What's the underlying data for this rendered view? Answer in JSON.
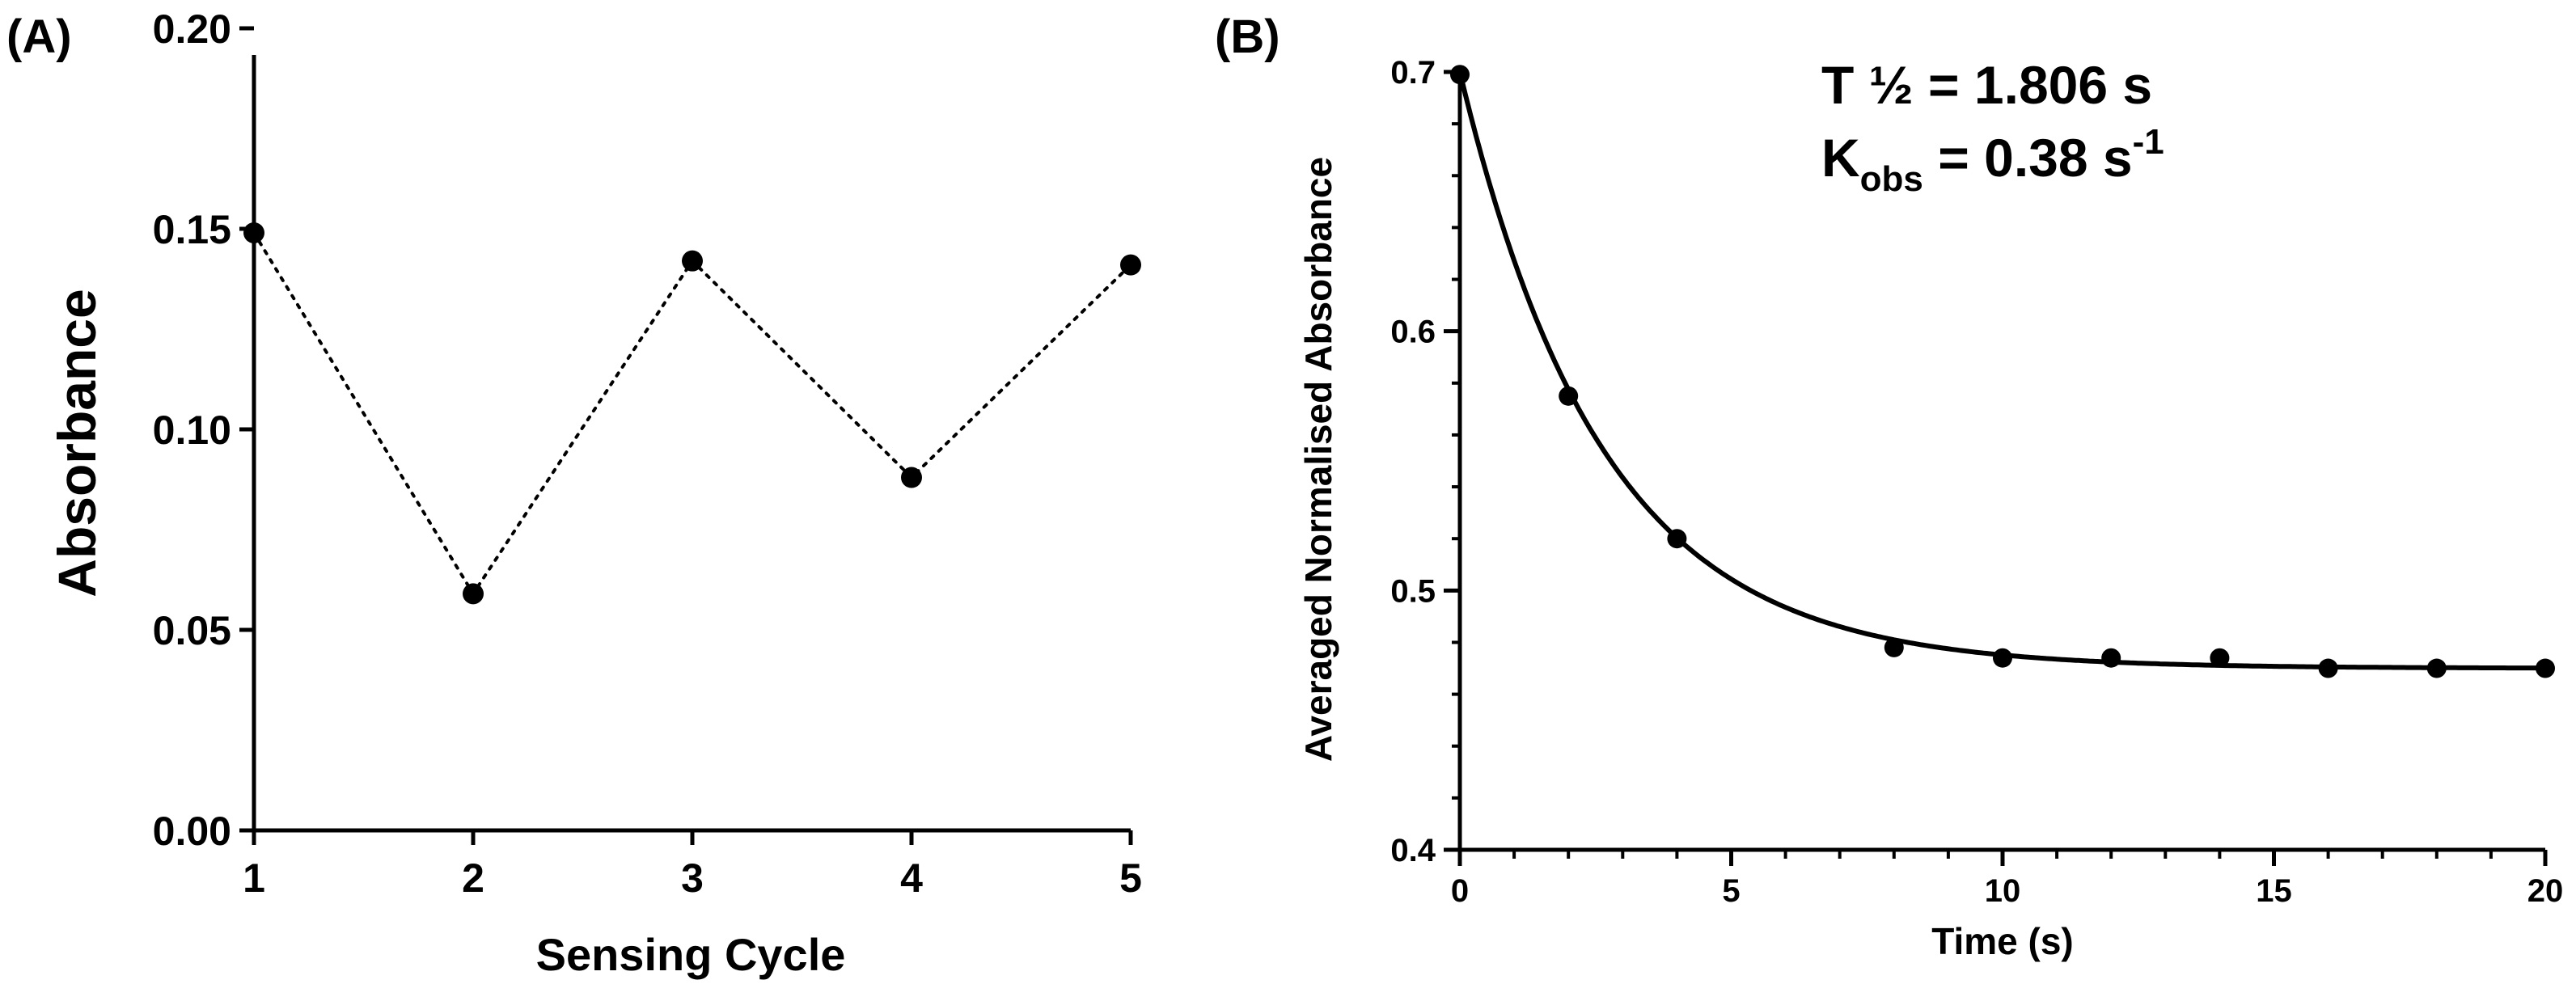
{
  "chart_data": [
    {
      "panel": "(A)",
      "type": "line",
      "line_style": "dotted",
      "markers": "filled-circle",
      "title": "",
      "xlabel": "Sensing Cycle",
      "ylabel": "Absorbance",
      "x": [
        1,
        2,
        3,
        4,
        5
      ],
      "y": [
        0.149,
        0.059,
        0.142,
        0.088,
        0.141
      ],
      "xlim": [
        1,
        5
      ],
      "ylim": [
        0.0,
        0.2
      ],
      "xticks": [
        "1",
        "2",
        "3",
        "4",
        "5"
      ],
      "yticks": [
        "0.00",
        "0.05",
        "0.10",
        "0.15",
        "0.20"
      ],
      "grid": false,
      "color": "#000000"
    },
    {
      "panel": "(B)",
      "type": "scatter",
      "markers": "filled-circle",
      "title": "",
      "xlabel": "Time (s)",
      "ylabel": "Averaged Normalised Absorbance",
      "x": [
        0,
        2,
        4,
        8,
        10,
        12,
        14,
        16,
        18,
        20
      ],
      "y": [
        0.699,
        0.575,
        0.52,
        0.478,
        0.474,
        0.474,
        0.474,
        0.47,
        0.47,
        0.47
      ],
      "fit": {
        "type": "exponential-decay",
        "y0": 0.7,
        "plateau": 0.47,
        "k": 0.38
      },
      "xlim": [
        0,
        20
      ],
      "ylim": [
        0.4,
        0.7
      ],
      "xticks": [
        "0",
        "5",
        "10",
        "15",
        "20"
      ],
      "yticks": [
        "0.4",
        "0.5",
        "0.6",
        "0.7"
      ],
      "grid": false,
      "color": "#000000",
      "annotations": {
        "half_life": "T ½ = 1.806 s",
        "kobs_prefix": "K",
        "kobs_sub": "obs",
        "kobs_value": " = 0.38 s",
        "kobs_exp": "-1"
      }
    }
  ]
}
